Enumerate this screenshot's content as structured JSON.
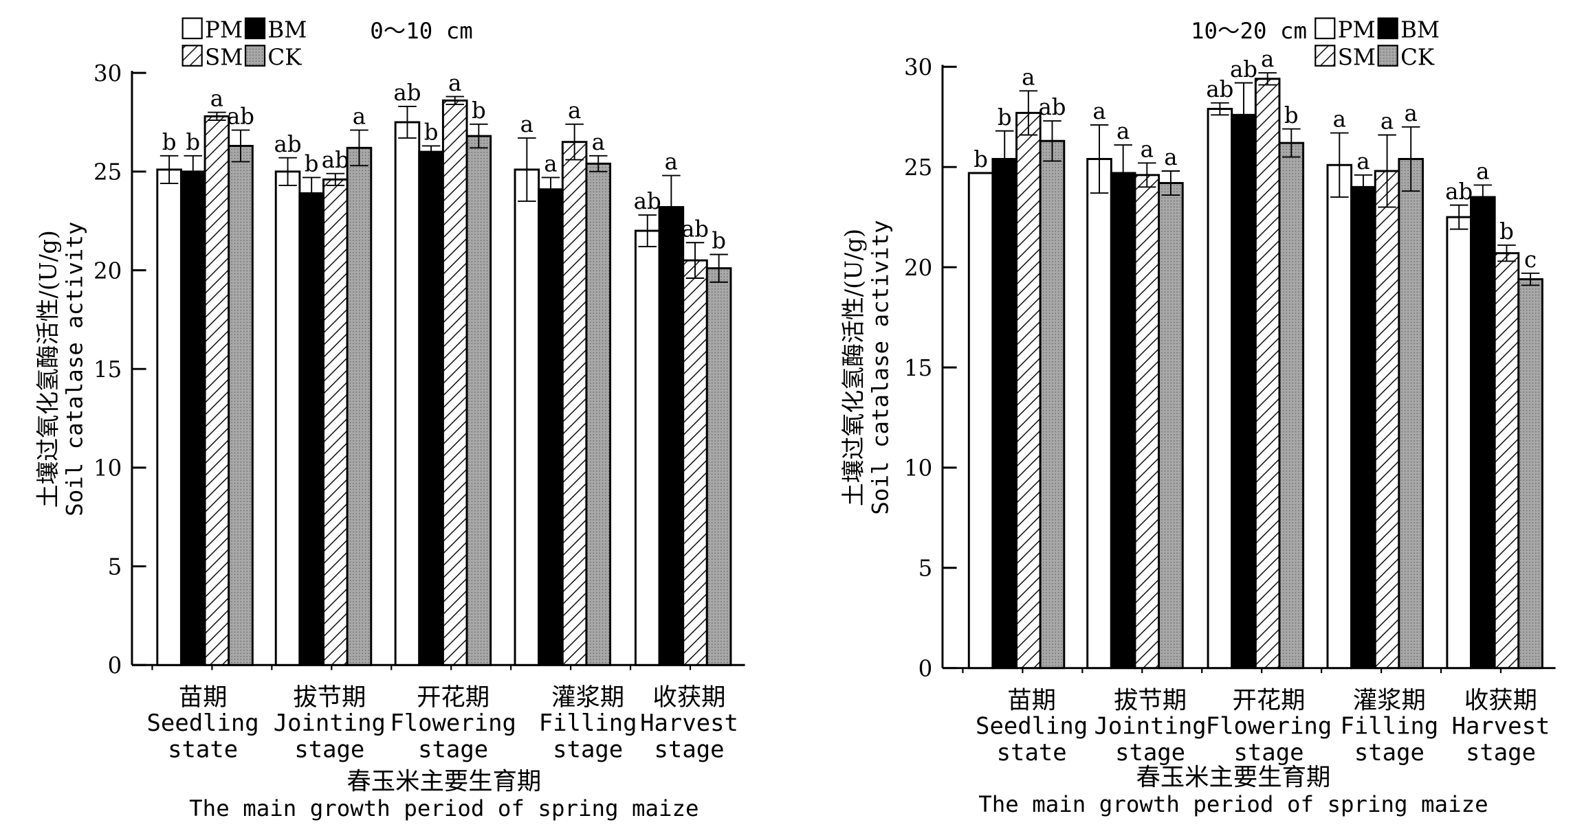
{
  "chart_data": [
    {
      "type": "bar",
      "title": "0～10 cm",
      "ylabel_cn": "土壤过氧化氢酶活性/(U/g)",
      "ylabel_en": "Soil catalase activity",
      "xlabel_cn": "春玉米主要生育期",
      "xlabel_en": "The main growth period of spring maize",
      "ylim": [
        0,
        30
      ],
      "yticks": [
        0,
        5,
        10,
        15,
        20,
        25,
        30
      ],
      "categories": [
        {
          "cn": "苗期",
          "en1": "Seedling",
          "en2": "state"
        },
        {
          "cn": "拔节期",
          "en1": "Jointing",
          "en2": "stage"
        },
        {
          "cn": "开花期",
          "en1": "Flowering",
          "en2": "stage"
        },
        {
          "cn": "灌浆期",
          "en1": "Filling",
          "en2": "stage"
        },
        {
          "cn": "收获期",
          "en1": "Harvest",
          "en2": "stage"
        }
      ],
      "legend_position": "top-left",
      "series": [
        {
          "name": "PM",
          "values": [
            25.1,
            25.0,
            27.5,
            25.1,
            22.0
          ],
          "errors": [
            0.7,
            0.7,
            0.8,
            1.6,
            0.8
          ],
          "letters": [
            "b",
            "ab",
            "ab",
            "a",
            "ab"
          ]
        },
        {
          "name": "BM",
          "values": [
            25.0,
            23.9,
            26.0,
            24.1,
            23.2
          ],
          "errors": [
            0.8,
            0.8,
            0.3,
            0.6,
            1.6
          ],
          "letters": [
            "b",
            "b",
            "b",
            "a",
            "a"
          ]
        },
        {
          "name": "SM",
          "values": [
            27.8,
            24.6,
            28.6,
            26.5,
            20.5
          ],
          "errors": [
            0.2,
            0.3,
            0.2,
            0.9,
            0.9
          ],
          "letters": [
            "a",
            "ab",
            "a",
            "a",
            "ab"
          ]
        },
        {
          "name": "CK",
          "values": [
            26.3,
            26.2,
            26.8,
            25.4,
            20.1
          ],
          "errors": [
            0.8,
            0.9,
            0.6,
            0.4,
            0.7
          ],
          "letters": [
            "ab",
            "a",
            "b",
            "a",
            "b"
          ]
        }
      ]
    },
    {
      "type": "bar",
      "title": "10～20 cm",
      "ylabel_cn": "土壤过氧化氢酶活性/(U/g)",
      "ylabel_en": "Soil catalase activity",
      "xlabel_cn": "春玉米主要生育期",
      "xlabel_en": "The main growth period of spring maize",
      "ylim": [
        0,
        30
      ],
      "yticks": [
        0,
        5,
        10,
        15,
        20,
        25,
        30
      ],
      "categories": [
        {
          "cn": "苗期",
          "en1": "Seedling",
          "en2": "state"
        },
        {
          "cn": "拔节期",
          "en1": "Jointing",
          "en2": "stage"
        },
        {
          "cn": "开花期",
          "en1": "Flowering",
          "en2": "stage"
        },
        {
          "cn": "灌浆期",
          "en1": "Filling",
          "en2": "stage"
        },
        {
          "cn": "收获期",
          "en1": "Harvest",
          "en2": "stage"
        }
      ],
      "legend_position": "top-right",
      "series": [
        {
          "name": "PM",
          "values": [
            24.7,
            25.4,
            27.9,
            25.1,
            22.5
          ],
          "errors": [
            0.0,
            1.7,
            0.3,
            1.6,
            0.6
          ],
          "letters": [
            "b",
            "a",
            "ab",
            "a",
            "ab"
          ]
        },
        {
          "name": "BM",
          "values": [
            25.4,
            24.7,
            27.6,
            24.0,
            23.5
          ],
          "errors": [
            1.4,
            1.4,
            1.6,
            0.6,
            0.6
          ],
          "letters": [
            "b",
            "a",
            "ab",
            "a",
            "a"
          ]
        },
        {
          "name": "SM",
          "values": [
            27.7,
            24.6,
            29.4,
            24.8,
            20.7
          ],
          "errors": [
            1.1,
            0.6,
            0.3,
            1.8,
            0.4
          ],
          "letters": [
            "a",
            "a",
            "a",
            "a",
            "b"
          ]
        },
        {
          "name": "CK",
          "values": [
            26.3,
            24.2,
            26.2,
            25.4,
            19.4
          ],
          "errors": [
            1.0,
            0.6,
            0.7,
            1.6,
            0.3
          ],
          "letters": [
            "ab",
            "a",
            "b",
            "a",
            "c"
          ]
        }
      ]
    }
  ]
}
